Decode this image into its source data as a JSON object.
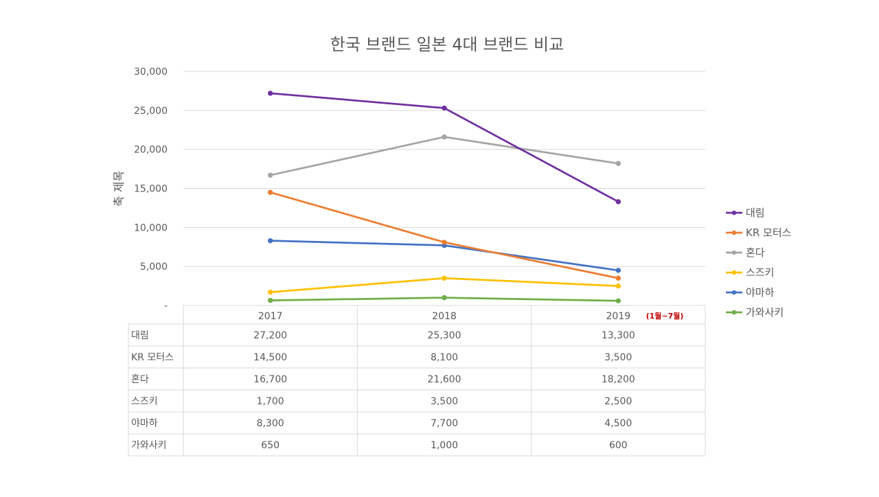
{
  "chart_data": {
    "type": "line",
    "title": "한국 브랜드 일본 4대 브랜드 비교",
    "ylabel": "축 제목",
    "xlabel": "",
    "categories": [
      "2017",
      "2018",
      "2019"
    ],
    "category_note": "(1월~7월)",
    "ylim": [
      0,
      30000
    ],
    "yticks": [
      {
        "value": 0,
        "label": "-"
      },
      {
        "value": 5000,
        "label": "5,000"
      },
      {
        "value": 10000,
        "label": "10,000"
      },
      {
        "value": 15000,
        "label": "15,000"
      },
      {
        "value": 20000,
        "label": "20,000"
      },
      {
        "value": 25000,
        "label": "25,000"
      },
      {
        "value": 30000,
        "label": "30,000"
      }
    ],
    "grid": true,
    "legend_position": "right",
    "data_table": true,
    "series": [
      {
        "name": "대림",
        "color": "#7030A0",
        "values": [
          27200,
          25300,
          13300
        ],
        "labels": [
          "27,200",
          "25,300",
          "13,300"
        ]
      },
      {
        "name": "KR 모터스",
        "color": "#ED7D31",
        "values": [
          14500,
          8100,
          3500
        ],
        "labels": [
          "14,500",
          "8,100",
          "3,500"
        ]
      },
      {
        "name": "혼다",
        "color": "#A5A5A5",
        "values": [
          16700,
          21600,
          18200
        ],
        "labels": [
          "16,700",
          "21,600",
          "18,200"
        ]
      },
      {
        "name": "스즈키",
        "color": "#FFC000",
        "values": [
          1700,
          3500,
          2500
        ],
        "labels": [
          "1,700",
          "3,500",
          "2,500"
        ]
      },
      {
        "name": "야마하",
        "color": "#4472C4",
        "values": [
          8300,
          7700,
          4500
        ],
        "labels": [
          "8,300",
          "7,700",
          "4,500"
        ]
      },
      {
        "name": "가와사키",
        "color": "#70AD47",
        "values": [
          650,
          1000,
          600
        ],
        "labels": [
          "650",
          "1,000",
          "600"
        ]
      }
    ]
  },
  "colors": {
    "text": "#595959",
    "title": "#595959",
    "grid": "#D9D9D9",
    "note": "#C00000"
  }
}
